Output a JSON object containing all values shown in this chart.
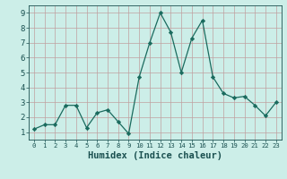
{
  "x": [
    0,
    1,
    2,
    3,
    4,
    5,
    6,
    7,
    8,
    9,
    10,
    11,
    12,
    13,
    14,
    15,
    16,
    17,
    18,
    19,
    20,
    21,
    22,
    23
  ],
  "y": [
    1.2,
    1.5,
    1.5,
    2.8,
    2.8,
    1.3,
    2.3,
    2.5,
    1.7,
    0.9,
    4.7,
    7.0,
    9.0,
    7.7,
    5.0,
    7.3,
    8.5,
    4.7,
    3.6,
    3.3,
    3.4,
    2.8,
    2.1,
    3.0
  ],
  "line_color": "#1a6b5e",
  "marker": "D",
  "marker_size": 2.2,
  "bg_color": "#cceee8",
  "grid_color": "#c0a0a0",
  "xlabel": "Humidex (Indice chaleur)",
  "ylim": [
    0.5,
    9.5
  ],
  "xlim": [
    -0.5,
    23.5
  ],
  "yticks": [
    1,
    2,
    3,
    4,
    5,
    6,
    7,
    8,
    9
  ],
  "xticks": [
    0,
    1,
    2,
    3,
    4,
    5,
    6,
    7,
    8,
    9,
    10,
    11,
    12,
    13,
    14,
    15,
    16,
    17,
    18,
    19,
    20,
    21,
    22,
    23
  ],
  "ytick_fontsize": 6.5,
  "xtick_fontsize": 5.2,
  "xlabel_fontsize": 7.5,
  "label_color": "#1a5050"
}
